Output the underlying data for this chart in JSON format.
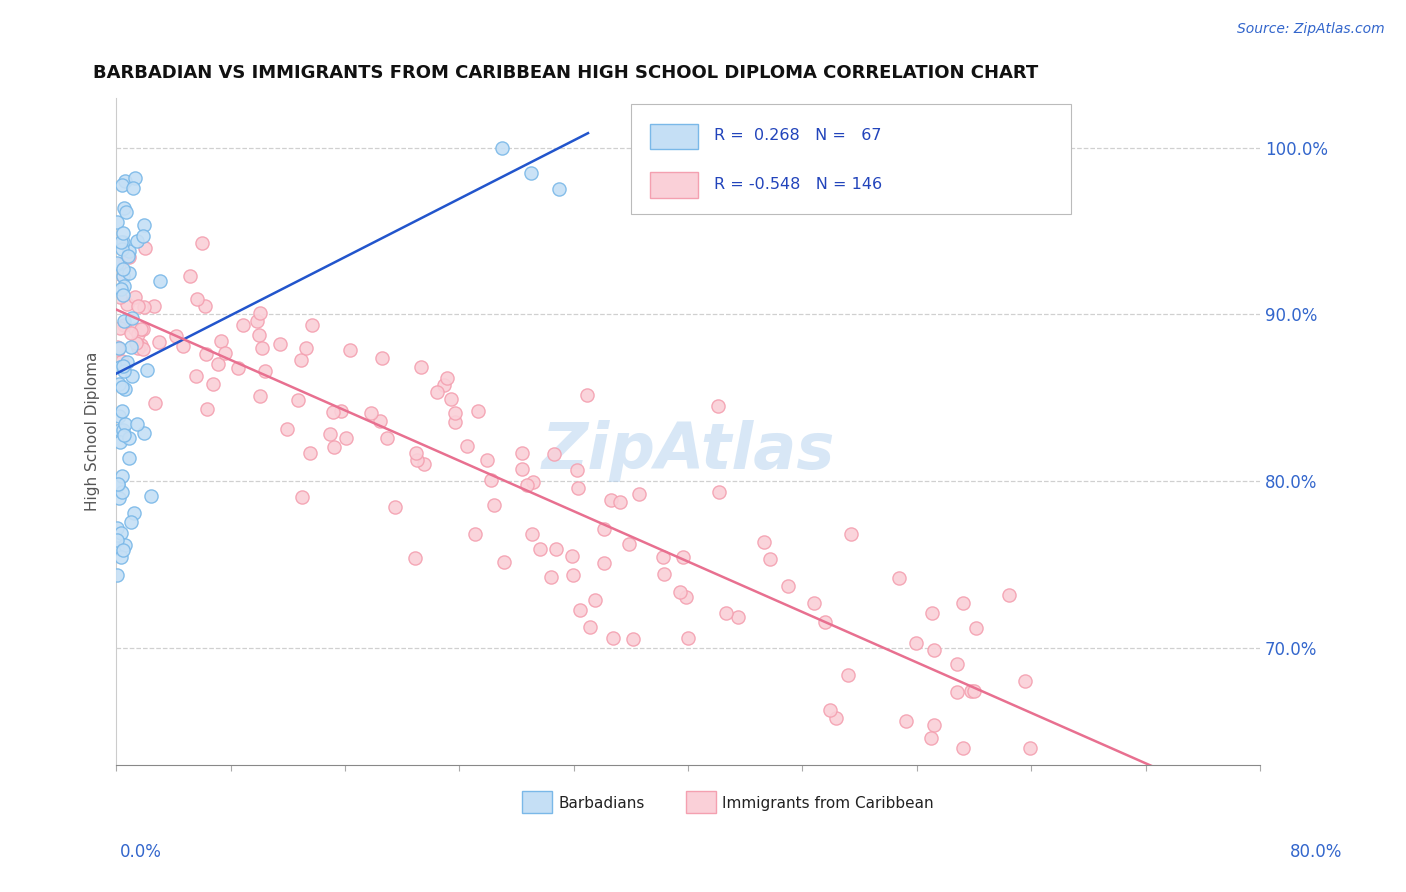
{
  "title": "BARBADIAN VS IMMIGRANTS FROM CARIBBEAN HIGH SCHOOL DIPLOMA CORRELATION CHART",
  "source": "Source: ZipAtlas.com",
  "ylabel": "High School Diploma",
  "blue_color": "#7ab8e8",
  "pink_color": "#f4a0b0",
  "blue_fill": "#c5dff5",
  "pink_fill": "#fad0d8",
  "trend_blue": "#2255cc",
  "trend_pink": "#e87090",
  "watermark": "ZipAtlas",
  "xlim": [
    0.0,
    0.8
  ],
  "ylim": [
    0.63,
    1.03
  ],
  "background": "#ffffff",
  "legend_text_color": "#2244bb",
  "right_axis_color": "#3366cc"
}
